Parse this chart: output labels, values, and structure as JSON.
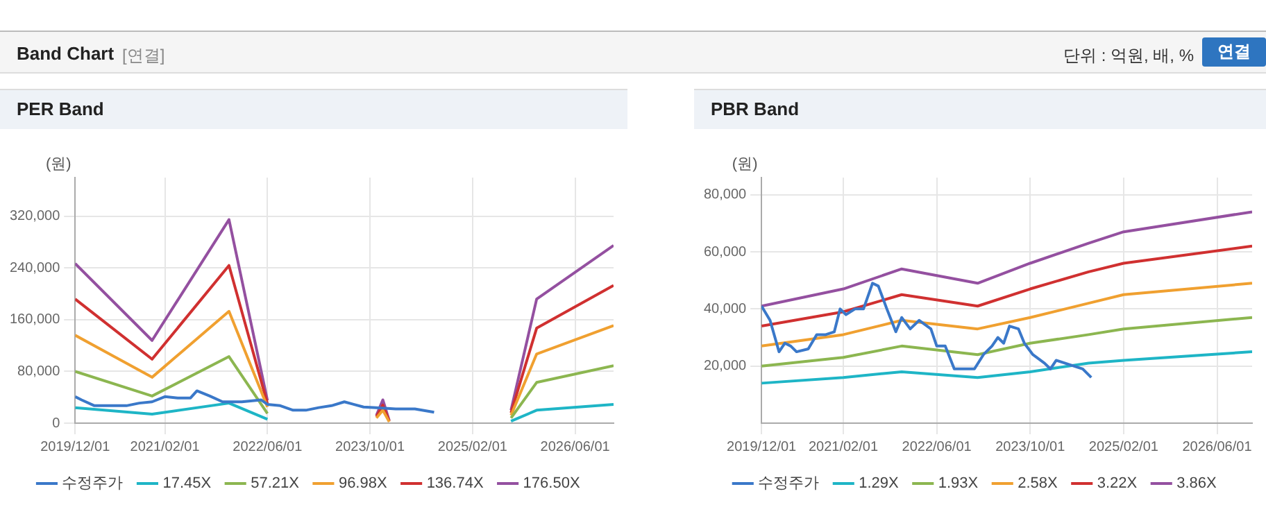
{
  "chart_data": [
    {
      "type": "line",
      "title": "PER Band",
      "ylabel": "(원)",
      "annotations": [
        "Band Chart",
        "[연결]",
        "단위 : 억원, 배, %",
        "연결"
      ],
      "xlim": [
        "2019-12-01",
        "2026-12-01"
      ],
      "xticks": [
        {
          "value": "2019-12-01",
          "label": "2019/12/01"
        },
        {
          "value": "2021-02-01",
          "label": "2021/02/01"
        },
        {
          "value": "2022-06-01",
          "label": "2022/06/01"
        },
        {
          "value": "2023-10-01",
          "label": "2023/10/01"
        },
        {
          "value": "2025-02-01",
          "label": "2025/02/01"
        },
        {
          "value": "2026-06-01",
          "label": "2026/06/01"
        }
      ],
      "ylim": [
        0,
        380000
      ],
      "yticks": [
        0,
        {
          "value": 80000,
          "label": "80,000"
        },
        {
          "value": 160000,
          "label": "160,000"
        },
        {
          "value": 240000,
          "label": "240,000"
        },
        {
          "value": 320000,
          "label": "320,000"
        }
      ],
      "grid": true,
      "legend": "bottom",
      "marker": "none",
      "x": [
        "2019-12-01",
        "2020-12-01",
        "2021-12-01",
        "2022-06-01",
        "2023-01-01",
        "2023-11-01",
        "2023-12-01",
        "2024-01-01",
        "2025-01-01",
        "2025-08-01",
        "2025-12-01",
        "2026-12-01"
      ],
      "series": [
        {
          "name": "수정주가",
          "color": "#3a78c9",
          "x": [
            "2019-12-01",
            "2020-01-01",
            "2020-03-01",
            "2020-05-01",
            "2020-08-01",
            "2020-10-01",
            "2020-12-01",
            "2021-02-01",
            "2021-04-01",
            "2021-06-01",
            "2021-07-01",
            "2021-09-01",
            "2021-11-01",
            "2022-02-01",
            "2022-05-01",
            "2022-06-01",
            "2022-08-01",
            "2022-10-01",
            "2022-12-01",
            "2023-02-01",
            "2023-04-01",
            "2023-06-01",
            "2023-09-01",
            "2023-11-01",
            "2024-02-01",
            "2024-05-01",
            "2024-08-01"
          ],
          "values": [
            41000,
            36000,
            27000,
            27000,
            27000,
            31000,
            33000,
            41000,
            39000,
            39000,
            50000,
            42000,
            33000,
            33000,
            36000,
            29000,
            27000,
            20000,
            20000,
            24000,
            27000,
            33000,
            25000,
            24000,
            22000,
            22000,
            17000
          ]
        },
        {
          "name": "17.45X",
          "color": "#1eb5c6",
          "values": [
            24000,
            14000,
            31000,
            6000,
            null,
            null,
            null,
            null,
            null,
            3000,
            20000,
            29000
          ]
        },
        {
          "name": "57.21X",
          "color": "#8cb650",
          "values": [
            80000,
            42000,
            103000,
            15000,
            null,
            null,
            null,
            null,
            null,
            8000,
            63000,
            89000
          ]
        },
        {
          "name": "96.98X",
          "color": "#f0a030",
          "values": [
            136000,
            71000,
            173000,
            25000,
            null,
            8000,
            20000,
            2000,
            null,
            12000,
            107000,
            151000
          ]
        },
        {
          "name": "136.74X",
          "color": "#d03030",
          "values": [
            192000,
            99000,
            244000,
            30000,
            null,
            10000,
            28000,
            3000,
            null,
            16000,
            147000,
            213000
          ]
        },
        {
          "name": "176.50X",
          "color": "#9450a0",
          "values": [
            247000,
            128000,
            315000,
            35000,
            null,
            12000,
            36000,
            4000,
            null,
            20000,
            192000,
            275000
          ]
        }
      ]
    },
    {
      "type": "line",
      "title": "PBR Band",
      "ylabel": "(원)",
      "xlim": [
        "2019-12-01",
        "2026-12-01"
      ],
      "xticks": [
        {
          "value": "2019-12-01",
          "label": "2019/12/01"
        },
        {
          "value": "2021-02-01",
          "label": "2021/02/01"
        },
        {
          "value": "2022-06-01",
          "label": "2022/06/01"
        },
        {
          "value": "2023-10-01",
          "label": "2023/10/01"
        },
        {
          "value": "2025-02-01",
          "label": "2025/02/01"
        },
        {
          "value": "2026-06-01",
          "label": "2026/06/01"
        }
      ],
      "ylim": [
        0,
        86000
      ],
      "yticks": [
        {
          "value": 20000,
          "label": "20,000"
        },
        {
          "value": 40000,
          "label": "40,000"
        },
        {
          "value": 60000,
          "label": "60,000"
        },
        {
          "value": 80000,
          "label": "80,000"
        }
      ],
      "grid": true,
      "legend": "bottom",
      "marker": "none",
      "x": [
        "2019-12-01",
        "2021-02-01",
        "2021-12-01",
        "2023-01-01",
        "2023-10-01",
        "2024-08-01",
        "2025-02-01",
        "2026-12-01"
      ],
      "series": [
        {
          "name": "수정주가",
          "color": "#3a78c9",
          "x": [
            "2019-12-01",
            "2020-01-15",
            "2020-03-01",
            "2020-04-01",
            "2020-05-01",
            "2020-06-01",
            "2020-08-01",
            "2020-09-15",
            "2020-11-01",
            "2020-12-15",
            "2021-01-15",
            "2021-02-15",
            "2021-04-01",
            "2021-05-15",
            "2021-07-01",
            "2021-08-01",
            "2021-09-15",
            "2021-11-01",
            "2021-12-01",
            "2022-01-15",
            "2022-03-01",
            "2022-05-01",
            "2022-06-01",
            "2022-07-15",
            "2022-09-01",
            "2022-12-15",
            "2023-02-01",
            "2023-03-15",
            "2023-04-15",
            "2023-05-15",
            "2023-06-15",
            "2023-08-01",
            "2023-09-01",
            "2023-10-15",
            "2023-12-15",
            "2024-01-15",
            "2024-02-15",
            "2024-04-01",
            "2024-07-01",
            "2024-08-15"
          ],
          "values": [
            41000,
            36000,
            25000,
            28000,
            27000,
            25000,
            26000,
            31000,
            31000,
            32000,
            40000,
            38000,
            40000,
            40000,
            49000,
            48000,
            40000,
            32000,
            37000,
            33000,
            36000,
            33000,
            27000,
            27000,
            19000,
            19000,
            24000,
            27000,
            30000,
            28000,
            34000,
            33000,
            28000,
            24000,
            21000,
            19000,
            22000,
            21000,
            19000,
            16000
          ]
        },
        {
          "name": "1.29X",
          "color": "#1eb5c6",
          "values": [
            14000,
            16000,
            18000,
            16000,
            18000,
            21000,
            22000,
            25000
          ]
        },
        {
          "name": "1.93X",
          "color": "#8cb650",
          "values": [
            20000,
            23000,
            27000,
            24000,
            28000,
            31000,
            33000,
            37000
          ]
        },
        {
          "name": "2.58X",
          "color": "#f0a030",
          "values": [
            27000,
            31000,
            36000,
            33000,
            37000,
            42000,
            45000,
            49000
          ]
        },
        {
          "name": "3.22X",
          "color": "#d03030",
          "values": [
            34000,
            39000,
            45000,
            41000,
            47000,
            53000,
            56000,
            62000
          ]
        },
        {
          "name": "3.86X",
          "color": "#9450a0",
          "values": [
            41000,
            47000,
            54000,
            49000,
            56000,
            63000,
            67000,
            74000
          ]
        }
      ]
    }
  ]
}
